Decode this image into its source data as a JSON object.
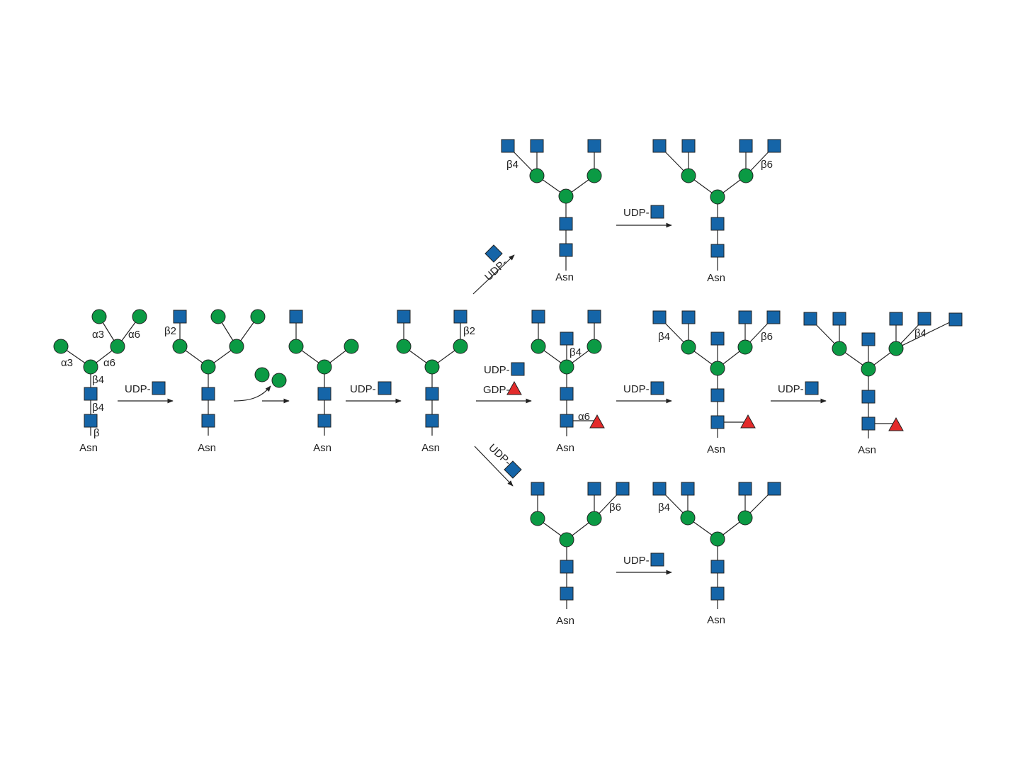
{
  "colors": {
    "glcnac": "#1565a8",
    "mannose": "#0b9a44",
    "fucose": "#e32b2b",
    "outline": "#222222"
  },
  "icons": {
    "glcnac": "blue-square-icon",
    "mannose": "green-circle-icon",
    "fucose": "red-triangle-icon",
    "udp_glcnac": "blue-diamond-icon"
  },
  "labels": {
    "asn": "Asn",
    "udp": "UDP-",
    "gdp": "GDP-",
    "alpha3": "α3",
    "alpha6": "α6",
    "beta": "β",
    "beta2": "β2",
    "beta4": "β4",
    "beta6": "β6"
  }
}
